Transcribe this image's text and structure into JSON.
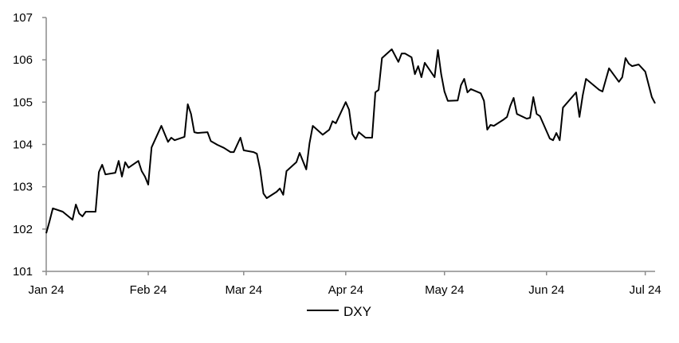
{
  "chart_data": {
    "type": "line",
    "title": "",
    "xlabel": "",
    "ylabel": "",
    "ylim": [
      101,
      107
    ],
    "yticks": [
      "101",
      "102",
      "103",
      "104",
      "105",
      "106",
      "107"
    ],
    "xticks": [
      {
        "date": "2024-01-01",
        "label": "Jan 24"
      },
      {
        "date": "2024-02-01",
        "label": "Feb 24"
      },
      {
        "date": "2024-03-01",
        "label": "Mar 24"
      },
      {
        "date": "2024-04-01",
        "label": "Apr 24"
      },
      {
        "date": "2024-05-01",
        "label": "May 24"
      },
      {
        "date": "2024-06-01",
        "label": "Jun 24"
      },
      {
        "date": "2024-07-01",
        "label": "Jul 24"
      }
    ],
    "grid": false,
    "legend": {
      "position": "bottom",
      "entries": [
        "DXY"
      ]
    },
    "series": [
      {
        "name": "DXY",
        "color": "#000000",
        "points": [
          [
            "2024-01-01",
            101.9
          ],
          [
            "2024-01-02",
            102.18
          ],
          [
            "2024-01-03",
            102.49
          ],
          [
            "2024-01-06",
            102.41
          ],
          [
            "2024-01-09",
            102.22
          ],
          [
            "2024-01-10",
            102.58
          ],
          [
            "2024-01-11",
            102.37
          ],
          [
            "2024-01-12",
            102.3
          ],
          [
            "2024-01-13",
            102.41
          ],
          [
            "2024-01-16",
            102.41
          ],
          [
            "2024-01-17",
            103.35
          ],
          [
            "2024-01-18",
            103.52
          ],
          [
            "2024-01-19",
            103.29
          ],
          [
            "2024-01-22",
            103.33
          ],
          [
            "2024-01-23",
            103.61
          ],
          [
            "2024-01-24",
            103.24
          ],
          [
            "2024-01-25",
            103.58
          ],
          [
            "2024-01-26",
            103.45
          ],
          [
            "2024-01-29",
            103.61
          ],
          [
            "2024-01-30",
            103.37
          ],
          [
            "2024-01-31",
            103.24
          ],
          [
            "2024-02-01",
            103.05
          ],
          [
            "2024-02-02",
            103.93
          ],
          [
            "2024-02-05",
            104.44
          ],
          [
            "2024-02-07",
            104.06
          ],
          [
            "2024-02-08",
            104.16
          ],
          [
            "2024-02-09",
            104.1
          ],
          [
            "2024-02-12",
            104.18
          ],
          [
            "2024-02-13",
            104.95
          ],
          [
            "2024-02-14",
            104.72
          ],
          [
            "2024-02-15",
            104.29
          ],
          [
            "2024-02-16",
            104.27
          ],
          [
            "2024-02-19",
            104.29
          ],
          [
            "2024-02-20",
            104.08
          ],
          [
            "2024-02-22",
            103.99
          ],
          [
            "2024-02-24",
            103.92
          ],
          [
            "2024-02-26",
            103.82
          ],
          [
            "2024-02-27",
            103.82
          ],
          [
            "2024-02-29",
            104.16
          ],
          [
            "2024-03-01",
            103.86
          ],
          [
            "2024-03-04",
            103.82
          ],
          [
            "2024-03-05",
            103.78
          ],
          [
            "2024-03-06",
            103.41
          ],
          [
            "2024-03-07",
            102.84
          ],
          [
            "2024-03-08",
            102.73
          ],
          [
            "2024-03-11",
            102.88
          ],
          [
            "2024-03-12",
            102.96
          ],
          [
            "2024-03-13",
            102.81
          ],
          [
            "2024-03-14",
            103.37
          ],
          [
            "2024-03-17",
            103.58
          ],
          [
            "2024-03-18",
            103.8
          ],
          [
            "2024-03-20",
            103.41
          ],
          [
            "2024-03-21",
            104.03
          ],
          [
            "2024-03-22",
            104.44
          ],
          [
            "2024-03-25",
            104.23
          ],
          [
            "2024-03-27",
            104.35
          ],
          [
            "2024-03-28",
            104.55
          ],
          [
            "2024-03-29",
            104.5
          ],
          [
            "2024-04-01",
            105.0
          ],
          [
            "2024-04-02",
            104.82
          ],
          [
            "2024-04-03",
            104.25
          ],
          [
            "2024-04-04",
            104.12
          ],
          [
            "2024-04-05",
            104.29
          ],
          [
            "2024-04-07",
            104.16
          ],
          [
            "2024-04-09",
            104.16
          ],
          [
            "2024-04-10",
            105.23
          ],
          [
            "2024-04-11",
            105.29
          ],
          [
            "2024-04-12",
            106.04
          ],
          [
            "2024-04-15",
            106.25
          ],
          [
            "2024-04-17",
            105.95
          ],
          [
            "2024-04-18",
            106.15
          ],
          [
            "2024-04-19",
            106.15
          ],
          [
            "2024-04-21",
            106.06
          ],
          [
            "2024-04-22",
            105.66
          ],
          [
            "2024-04-23",
            105.85
          ],
          [
            "2024-04-24",
            105.59
          ],
          [
            "2024-04-25",
            105.93
          ],
          [
            "2024-04-28",
            105.59
          ],
          [
            "2024-04-29",
            106.23
          ],
          [
            "2024-04-30",
            105.66
          ],
          [
            "2024-05-01",
            105.25
          ],
          [
            "2024-05-02",
            105.03
          ],
          [
            "2024-05-05",
            105.04
          ],
          [
            "2024-05-06",
            105.4
          ],
          [
            "2024-05-07",
            105.55
          ],
          [
            "2024-05-08",
            105.23
          ],
          [
            "2024-05-09",
            105.31
          ],
          [
            "2024-05-12",
            105.21
          ],
          [
            "2024-05-13",
            105.03
          ],
          [
            "2024-05-14",
            104.35
          ],
          [
            "2024-05-15",
            104.46
          ],
          [
            "2024-05-16",
            104.44
          ],
          [
            "2024-05-19",
            104.59
          ],
          [
            "2024-05-20",
            104.65
          ],
          [
            "2024-05-21",
            104.91
          ],
          [
            "2024-05-22",
            105.1
          ],
          [
            "2024-05-23",
            104.72
          ],
          [
            "2024-05-26",
            104.61
          ],
          [
            "2024-05-27",
            104.63
          ],
          [
            "2024-05-28",
            105.12
          ],
          [
            "2024-05-29",
            104.72
          ],
          [
            "2024-05-30",
            104.67
          ],
          [
            "2024-06-02",
            104.14
          ],
          [
            "2024-06-03",
            104.1
          ],
          [
            "2024-06-04",
            104.27
          ],
          [
            "2024-06-05",
            104.1
          ],
          [
            "2024-06-06",
            104.87
          ],
          [
            "2024-06-10",
            105.23
          ],
          [
            "2024-06-11",
            104.65
          ],
          [
            "2024-06-12",
            105.16
          ],
          [
            "2024-06-13",
            105.55
          ],
          [
            "2024-06-17",
            105.29
          ],
          [
            "2024-06-18",
            105.25
          ],
          [
            "2024-06-20",
            105.8
          ],
          [
            "2024-06-23",
            105.48
          ],
          [
            "2024-06-24",
            105.59
          ],
          [
            "2024-06-25",
            106.04
          ],
          [
            "2024-06-26",
            105.91
          ],
          [
            "2024-06-27",
            105.85
          ],
          [
            "2024-06-29",
            105.89
          ],
          [
            "2024-07-01",
            105.72
          ],
          [
            "2024-07-03",
            105.12
          ],
          [
            "2024-07-04",
            104.97
          ]
        ]
      }
    ]
  }
}
